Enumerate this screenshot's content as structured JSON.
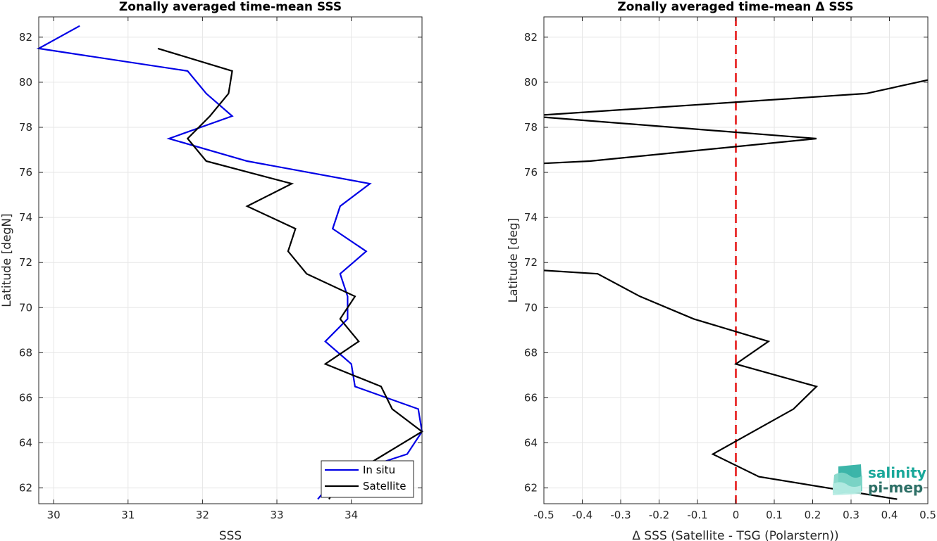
{
  "chart_data": [
    {
      "type": "line",
      "title": "Zonally averaged time-mean SSS",
      "xlabel": "SSS",
      "ylabel": "Latitude [degN]",
      "xlim": [
        29.8,
        34.95
      ],
      "ylim": [
        61.3,
        82.9
      ],
      "xticks": [
        30,
        31,
        32,
        33,
        34
      ],
      "yticks": [
        62,
        64,
        66,
        68,
        70,
        72,
        74,
        76,
        78,
        80,
        82
      ],
      "grid": true,
      "legend_position": "bottom-right",
      "series": [
        {
          "name": "In situ",
          "color": "#0000e6",
          "x": [
            33.55,
            33.75,
            34.1,
            34.75,
            34.95,
            34.9,
            34.05,
            34.0,
            33.65,
            33.95,
            33.95,
            33.85,
            34.2,
            33.75,
            33.85,
            34.25,
            32.6,
            31.55,
            32.4,
            32.05,
            31.8,
            29.8,
            30.35
          ],
          "y": [
            61.5,
            62.3,
            62.8,
            63.5,
            64.5,
            65.5,
            66.5,
            67.5,
            68.5,
            69.5,
            70.5,
            71.5,
            72.5,
            73.5,
            74.5,
            75.5,
            76.5,
            77.5,
            78.5,
            79.5,
            80.5,
            81.5,
            82.5
          ]
        },
        {
          "name": "Satellite",
          "color": "#000000",
          "x": [
            33.7,
            33.85,
            34.45,
            34.95,
            34.55,
            34.4,
            33.65,
            34.1,
            33.85,
            34.05,
            33.4,
            33.15,
            33.25,
            32.6,
            33.2,
            32.05,
            31.8,
            32.1,
            32.35,
            32.4,
            31.4
          ],
          "y": [
            61.5,
            62.3,
            63.5,
            64.5,
            65.5,
            66.5,
            67.5,
            68.5,
            69.5,
            70.5,
            71.5,
            72.5,
            73.5,
            74.5,
            75.5,
            76.5,
            77.5,
            78.5,
            79.5,
            80.5,
            81.5
          ]
        }
      ]
    },
    {
      "type": "line",
      "title": "Zonally averaged time-mean Δ SSS",
      "xlabel": "Δ SSS (Satellite - TSG (Polarstern))",
      "ylabel": "Latitude [deg]",
      "xlim": [
        -0.5,
        0.5
      ],
      "ylim": [
        61.3,
        82.9
      ],
      "xticks": [
        -0.5,
        -0.4,
        -0.3,
        -0.2,
        -0.1,
        0,
        0.1,
        0.2,
        0.3,
        0.4,
        0.5
      ],
      "yticks": [
        62,
        64,
        66,
        68,
        70,
        72,
        74,
        76,
        78,
        80,
        82
      ],
      "grid": true,
      "reference_line": {
        "x": 0,
        "color": "#e61a1a",
        "style": "dashed"
      },
      "series": [
        {
          "color": "#000000",
          "segments": [
            {
              "x": [
                0.42,
                0.06,
                -0.06,
                0.15,
                0.21,
                0.0,
                0.085,
                -0.11,
                -0.25,
                -0.36,
                -0.5
              ],
              "y": [
                61.5,
                62.5,
                63.5,
                65.5,
                66.5,
                67.5,
                68.5,
                69.5,
                70.5,
                71.5,
                71.65
              ]
            },
            {
              "x": [
                -0.5,
                -0.38,
                0.21,
                -0.5
              ],
              "y": [
                76.4,
                76.5,
                77.5,
                78.45
              ]
            },
            {
              "x": [
                -0.5,
                0.34,
                0.5
              ],
              "y": [
                78.55,
                79.5,
                80.1
              ]
            }
          ]
        }
      ]
    }
  ],
  "legend": {
    "entries": [
      {
        "label": "In situ",
        "color": "#0000e6"
      },
      {
        "label": "Satellite",
        "color": "#000000"
      }
    ]
  },
  "logo": {
    "line1": "salinity",
    "line2": "pi-mep",
    "colors": {
      "primary": "#1aa89a",
      "secondary": "#2d6f66"
    }
  },
  "colors": {
    "grid": "#e6e6e6",
    "axis": "#262626",
    "reference": "#e61a1a"
  }
}
